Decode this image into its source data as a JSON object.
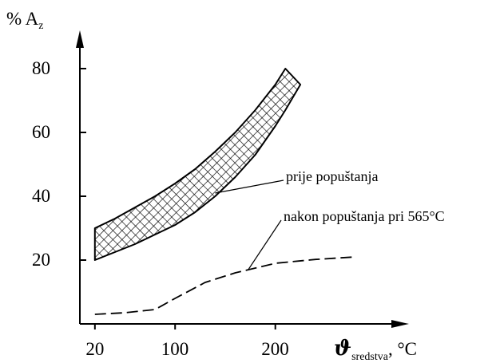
{
  "chart_data": {
    "type": "area",
    "ylabel": {
      "prefix": "% A",
      "sub": "z"
    },
    "xlabel": {
      "symbol": "ϑ",
      "sub": "sredstva",
      "suffix": ", °C"
    },
    "xlim": [
      5,
      350
    ],
    "ylim": [
      0,
      90
    ],
    "xticks": [
      {
        "value": 20,
        "label": "20"
      },
      {
        "value": 100,
        "label": "100"
      },
      {
        "value": 200,
        "label": "200"
      }
    ],
    "yticks": [
      {
        "value": 20,
        "label": "20"
      },
      {
        "value": 40,
        "label": "40"
      },
      {
        "value": 60,
        "label": "60"
      },
      {
        "value": 80,
        "label": "80"
      }
    ],
    "series": [
      {
        "name": "prije popuštanja",
        "kind": "band",
        "fill": "crosshatch",
        "x": [
          20,
          40,
          60,
          80,
          100,
          120,
          140,
          160,
          180,
          200,
          210
        ],
        "upper": [
          30,
          33,
          36.5,
          40,
          44,
          48.5,
          54,
          60,
          67,
          75,
          80
        ],
        "lower": [
          20,
          22.5,
          25,
          28,
          31,
          35,
          40,
          46,
          53,
          62,
          67
        ],
        "end_x": 225,
        "end_y": 75
      },
      {
        "name": "nakon popuštanja pri 565°C",
        "kind": "line",
        "dash": "long-dash",
        "x": [
          20,
          50,
          80,
          100,
          130,
          160,
          200,
          240,
          280
        ],
        "y": [
          3,
          3.5,
          4.5,
          8,
          13,
          16,
          19,
          20.2,
          21
        ]
      }
    ],
    "annotations": [
      {
        "label": "prije popuštanja",
        "series": 0,
        "point_x": 140,
        "point_y": 41
      },
      {
        "label": "nakon popuštanja pri 565°C",
        "series": 1,
        "point_x": 173,
        "point_y": 17
      }
    ],
    "grid": false,
    "legend": "none",
    "colors": {
      "line": "#000000",
      "background": "#ffffff"
    }
  }
}
